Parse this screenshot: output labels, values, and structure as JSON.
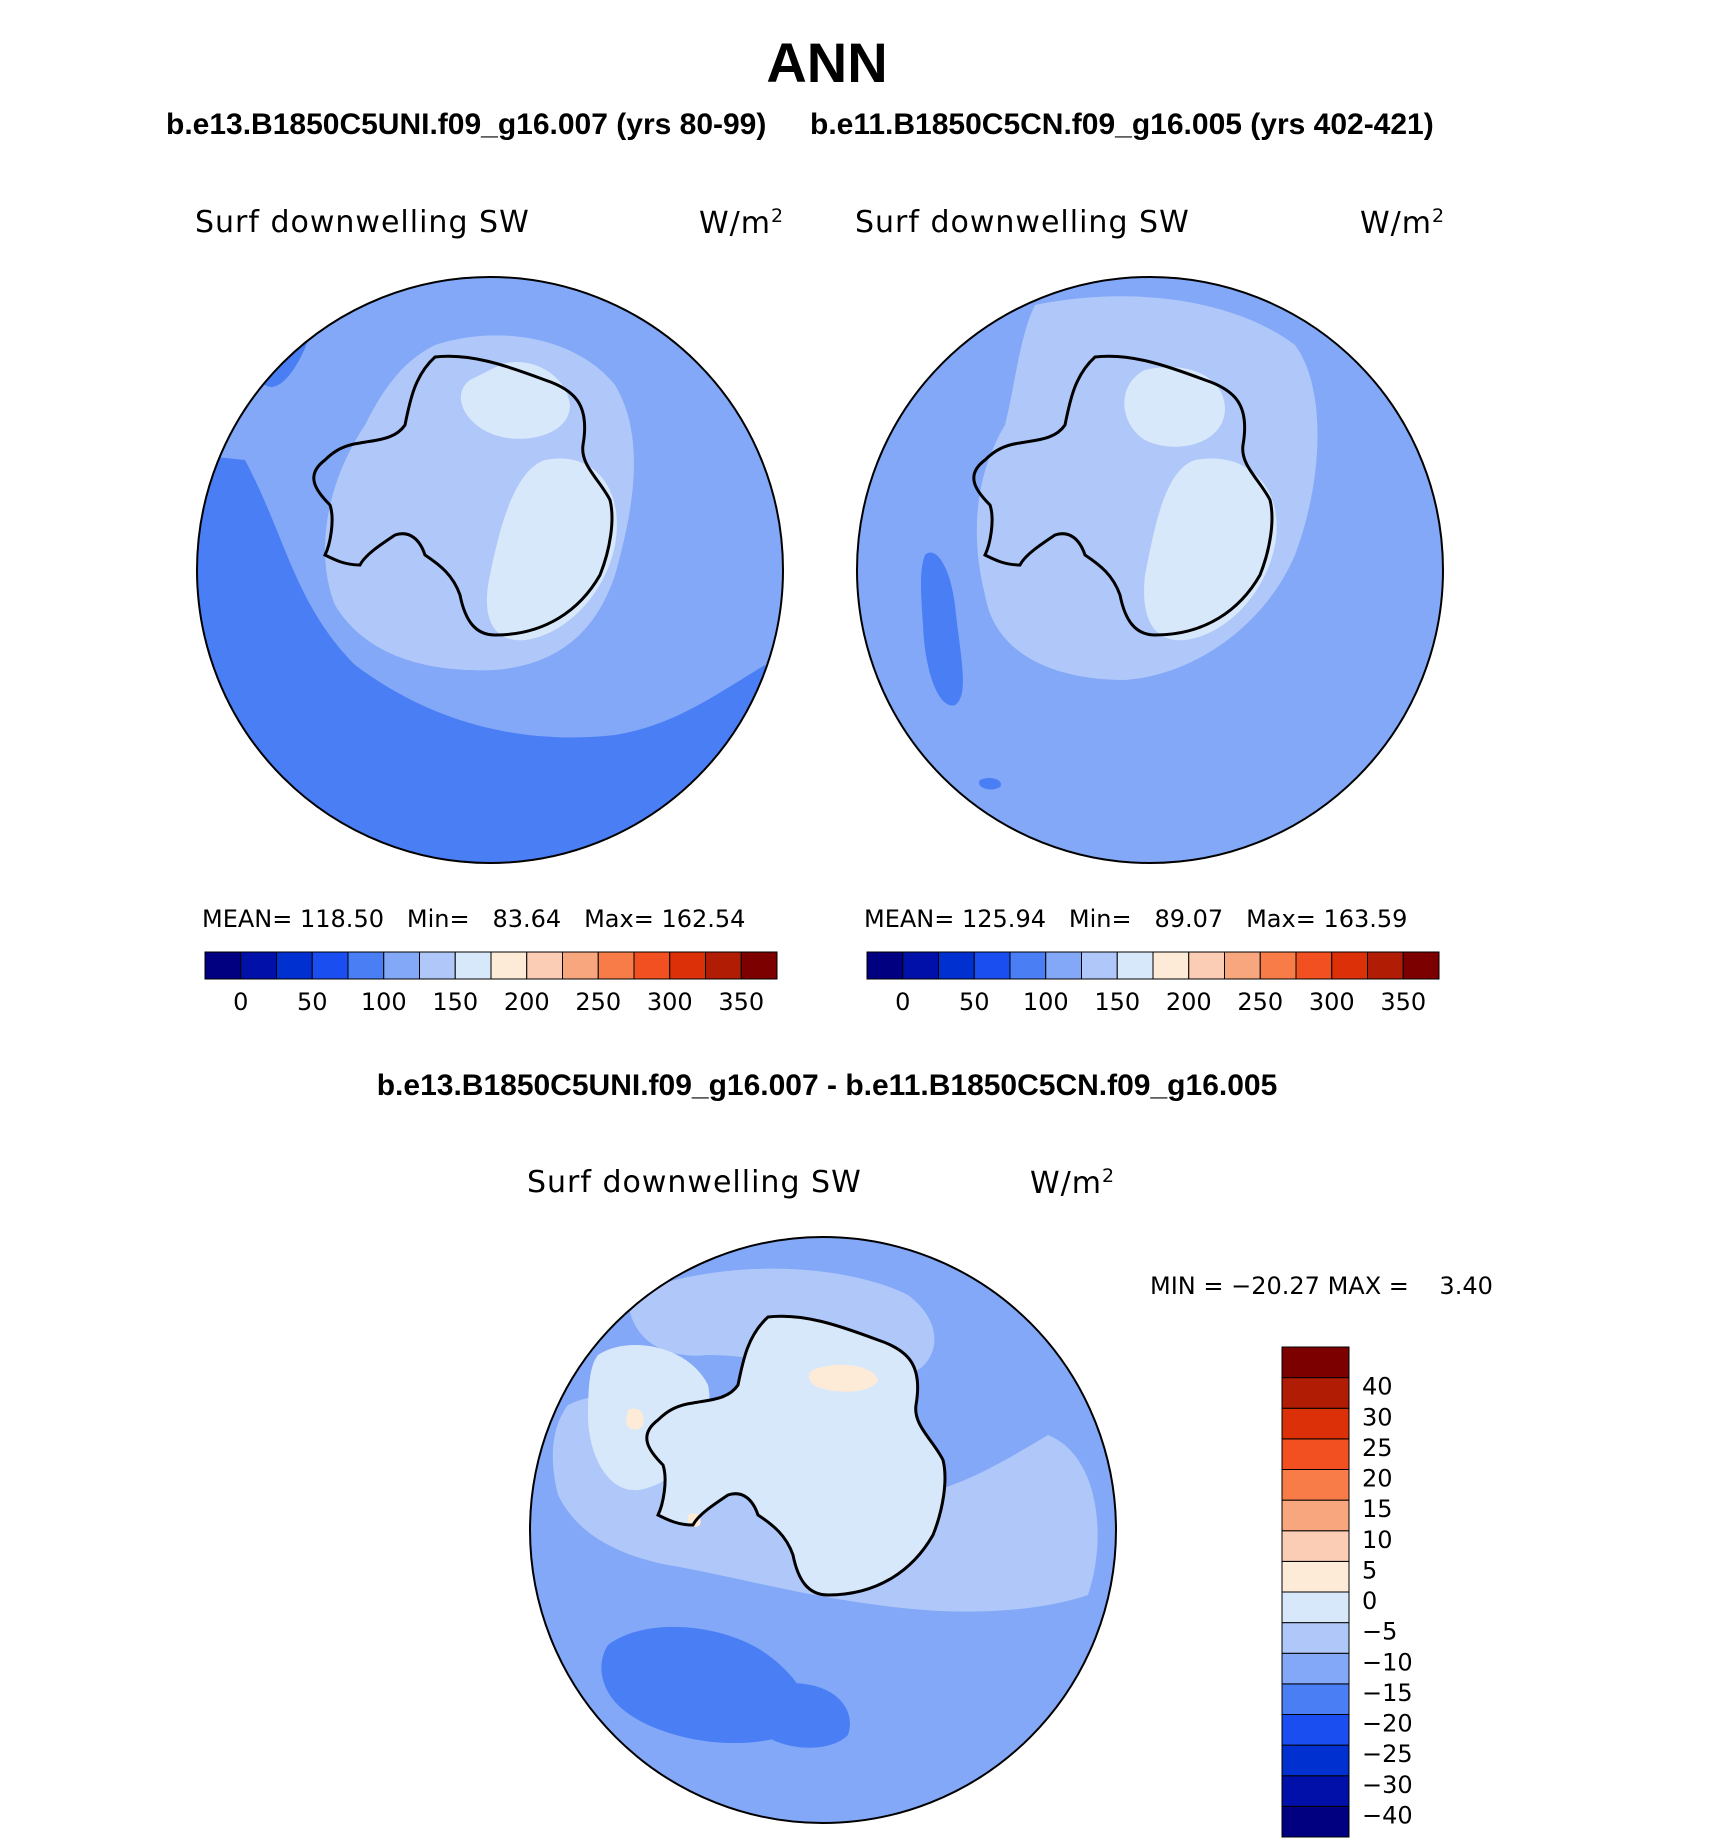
{
  "figure": {
    "title": "ANN",
    "run_a": "b.e13.B1850C5UNI.f09_g16.007 (yrs 80-99)",
    "run_b": "b.e11.B1850C5CN.f09_g16.005 (yrs 402-421)",
    "diff_title": "b.e13.B1850C5UNI.f09_g16.007 - b.e11.B1850C5CN.f09_g16.005"
  },
  "panels": [
    {
      "variable": "Surf downwelling SW",
      "units": "W/m",
      "units_sup": "2",
      "mean_label": "MEAN=",
      "mean": "118.50",
      "min_label": "Min=",
      "min": "83.64",
      "max_label": "Max=",
      "max": "162.54"
    },
    {
      "variable": "Surf downwelling SW",
      "units": "W/m",
      "units_sup": "2",
      "mean_label": "MEAN=",
      "mean": "125.94",
      "min_label": "Min=",
      "min": "89.07",
      "max_label": "Max=",
      "max": "163.59"
    }
  ],
  "diff_panel": {
    "variable": "Surf downwelling SW",
    "units": "W/m",
    "units_sup": "2",
    "min_label": "MIN =",
    "min": "−20.27",
    "max_label": "MAX =",
    "max": "3.40"
  },
  "abs_colorbar": {
    "colors": [
      "#000080",
      "#0010a8",
      "#0030d0",
      "#1a4ef0",
      "#4a7ef5",
      "#82a8f7",
      "#b0c8f9",
      "#d8e8fb",
      "#fdebd8",
      "#fccdb5",
      "#f8a67e",
      "#f87c48",
      "#f25020",
      "#dc3008",
      "#b01c04",
      "#7d0000"
    ],
    "tick_labels": [
      "0",
      "50",
      "100",
      "150",
      "200",
      "250",
      "300",
      "350"
    ]
  },
  "diff_colorbar": {
    "colors": [
      "#000080",
      "#0010a8",
      "#0030d0",
      "#1a4ef0",
      "#4a7ef5",
      "#82a8f7",
      "#b0c8f9",
      "#d8e8fb",
      "#fdebd8",
      "#fccdb5",
      "#f8a67e",
      "#f87c48",
      "#f25020",
      "#dc3008",
      "#b01c04",
      "#7d0000"
    ],
    "tick_labels": [
      "−40",
      "−30",
      "−25",
      "−20",
      "−15",
      "−10",
      "−5",
      "0",
      "5",
      "10",
      "15",
      "20",
      "25",
      "30",
      "40"
    ]
  },
  "map_colors": {
    "ocean_dark": "#4a7ef5",
    "ocean_mid": "#82a8f7",
    "ocean_light": "#b0c8f9",
    "ice": "#d8e8fb",
    "positive": "#fdebd8"
  }
}
